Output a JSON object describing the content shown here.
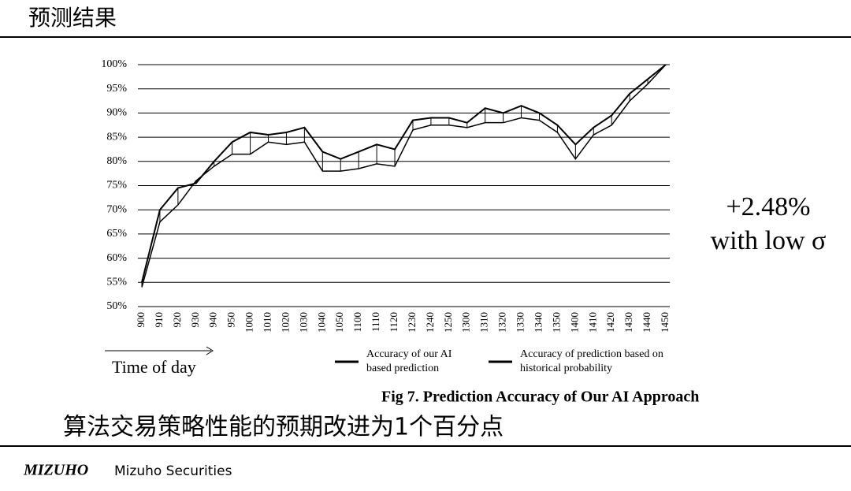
{
  "header": {
    "title": "预测结果"
  },
  "chart_data": {
    "type": "line",
    "categories": [
      "900",
      "910",
      "920",
      "930",
      "940",
      "950",
      "1000",
      "1010",
      "1020",
      "1030",
      "1040",
      "1050",
      "1100",
      "1110",
      "1120",
      "1230",
      "1240",
      "1250",
      "1300",
      "1310",
      "1320",
      "1330",
      "1340",
      "1350",
      "1400",
      "1410",
      "1420",
      "1430",
      "1440",
      "1450"
    ],
    "series": [
      {
        "name": "Accuracy of our AI based prediction",
        "color": "#000000",
        "values": [
          55,
          70,
          74.5,
          75.5,
          80,
          84,
          86,
          85.5,
          86,
          87,
          82,
          80.5,
          82,
          83.5,
          82.5,
          88.5,
          89,
          89,
          88,
          91,
          90,
          91.5,
          90,
          87.5,
          83.5,
          87,
          89.5,
          94,
          97,
          100
        ]
      },
      {
        "name": "Accuracy of prediction based on historical probability",
        "color": "#000000",
        "values": [
          54,
          67.5,
          71,
          76,
          79,
          81.5,
          81.5,
          84,
          83.5,
          84,
          78,
          78,
          78.5,
          79.5,
          79,
          86.5,
          87.5,
          87.5,
          87,
          88,
          88,
          89,
          88.5,
          86,
          80.5,
          85.5,
          87.5,
          92.5,
          96,
          100
        ]
      }
    ],
    "ylim": [
      50,
      100
    ],
    "yticks": [
      {
        "value": 50,
        "label": "50%"
      },
      {
        "value": 55,
        "label": "55%"
      },
      {
        "value": 60,
        "label": "60%"
      },
      {
        "value": 65,
        "label": "65%"
      },
      {
        "value": 70,
        "label": "70%"
      },
      {
        "value": 75,
        "label": "75%"
      },
      {
        "value": 80,
        "label": "80%"
      },
      {
        "value": 85,
        "label": "85%"
      },
      {
        "value": 90,
        "label": "90%"
      },
      {
        "value": 95,
        "label": "95%"
      },
      {
        "value": 100,
        "label": "100%"
      }
    ],
    "grid": true,
    "xlabel": "Time of day",
    "caption": "Fig 7. Prediction Accuracy of Our AI Approach"
  },
  "callout": {
    "line1": "+2.48%",
    "line2": "with low σ"
  },
  "conclusion": "算法交易策略性能的预期改进为1个百分点",
  "footer": {
    "logo": "MIZUHO",
    "company": "Mizuho Securities"
  }
}
